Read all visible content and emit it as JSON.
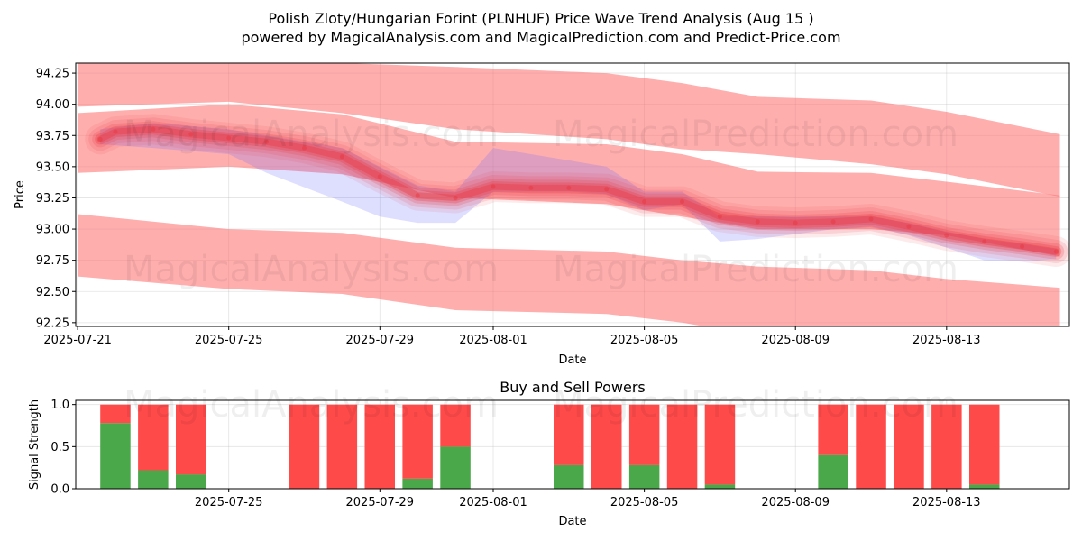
{
  "title_line1": "Polish Zloty/Hungarian Forint (PLNHUF) Price Wave Trend Analysis (Aug 15 )",
  "title_line2": "powered by MagicalAnalysis.com and MagicalPrediction.com and Predict-Price.com",
  "watermarks": [
    "MagicalAnalysis.com",
    "MagicalPrediction.com"
  ],
  "colors": {
    "band": "#ff6b6b",
    "trend": "#e83a44",
    "blue": "#6b6bff",
    "buy": "#4aa84a",
    "sell": "#ff4a4a"
  },
  "chart_data": [
    {
      "type": "line",
      "title": "",
      "xlabel": "Date",
      "ylabel": "Price",
      "x_ticks": [
        "2025-07-21",
        "2025-07-25",
        "2025-07-29",
        "2025-08-01",
        "2025-08-05",
        "2025-08-09",
        "2025-08-13"
      ],
      "y_ticks": [
        "92.25",
        "92.50",
        "92.75",
        "93.00",
        "93.25",
        "93.50",
        "93.75",
        "94.00",
        "94.25"
      ],
      "xlim": [
        "2025-07-20.95",
        "2025-08-16.25"
      ],
      "ylim": [
        92.22,
        94.33
      ],
      "grid": true,
      "upper_band": {
        "x": [
          "2025-07-21",
          "2025-07-25",
          "2025-07-28",
          "2025-07-31",
          "2025-08-04",
          "2025-08-06",
          "2025-08-08",
          "2025-08-11",
          "2025-08-13",
          "2025-08-16"
        ],
        "low": [
          93.98,
          94.02,
          93.93,
          93.8,
          93.72,
          93.64,
          93.6,
          93.52,
          93.44,
          93.26
        ],
        "high": [
          94.35,
          94.35,
          94.33,
          94.3,
          94.25,
          94.17,
          94.06,
          94.03,
          93.94,
          93.76
        ]
      },
      "mid_band": {
        "x": [
          "2025-07-21",
          "2025-07-25",
          "2025-07-28",
          "2025-07-31",
          "2025-08-04",
          "2025-08-06",
          "2025-08-08",
          "2025-08-11",
          "2025-08-13",
          "2025-08-16"
        ],
        "low": [
          93.45,
          93.5,
          93.44,
          93.25,
          93.2,
          93.1,
          93.0,
          93.0,
          92.95,
          92.78
        ],
        "high": [
          93.93,
          94.0,
          93.92,
          93.7,
          93.68,
          93.6,
          93.46,
          93.45,
          93.38,
          93.27
        ]
      },
      "lower_band": {
        "x": [
          "2025-07-21",
          "2025-07-25",
          "2025-07-28",
          "2025-07-31",
          "2025-08-04",
          "2025-08-06",
          "2025-08-08",
          "2025-08-11",
          "2025-08-13",
          "2025-08-16"
        ],
        "low": [
          92.62,
          92.52,
          92.48,
          92.35,
          92.32,
          92.25,
          92.15,
          92.05,
          92.0,
          91.95
        ],
        "high": [
          93.12,
          93.0,
          92.97,
          92.85,
          92.82,
          92.75,
          92.7,
          92.67,
          92.6,
          92.53
        ]
      },
      "trend": {
        "x": [
          "2025-07-21.6",
          "2025-07-22",
          "2025-07-23",
          "2025-07-24",
          "2025-07-25",
          "2025-07-26",
          "2025-07-27",
          "2025-07-28",
          "2025-07-29",
          "2025-07-30",
          "2025-07-31",
          "2025-08-01",
          "2025-08-02",
          "2025-08-03",
          "2025-08-04",
          "2025-08-05",
          "2025-08-06",
          "2025-08-07",
          "2025-08-08",
          "2025-08-09",
          "2025-08-10",
          "2025-08-11",
          "2025-08-12",
          "2025-08-13",
          "2025-08-14",
          "2025-08-15",
          "2025-08-15.9"
        ],
        "y": [
          93.72,
          93.78,
          93.8,
          93.76,
          93.73,
          93.7,
          93.65,
          93.58,
          93.42,
          93.27,
          93.25,
          93.34,
          93.33,
          93.33,
          93.32,
          93.22,
          93.22,
          93.1,
          93.06,
          93.05,
          93.06,
          93.08,
          93.02,
          92.95,
          92.9,
          92.86,
          92.82
        ]
      },
      "blue_band": {
        "x": [
          "2025-07-21.6",
          "2025-07-23",
          "2025-07-25",
          "2025-07-26",
          "2025-07-28",
          "2025-07-29",
          "2025-07-30",
          "2025-07-31",
          "2025-08-01",
          "2025-08-03",
          "2025-08-04",
          "2025-08-05",
          "2025-08-06",
          "2025-08-07",
          "2025-08-08",
          "2025-08-10",
          "2025-08-11",
          "2025-08-12",
          "2025-08-13",
          "2025-08-14",
          "2025-08-15",
          "2025-08-15.9"
        ],
        "low": [
          93.68,
          93.65,
          93.6,
          93.45,
          93.22,
          93.1,
          93.05,
          93.05,
          93.3,
          93.3,
          93.28,
          93.15,
          93.2,
          92.9,
          92.92,
          93.0,
          93.02,
          92.95,
          92.85,
          92.75,
          92.74,
          92.76
        ],
        "high": [
          93.8,
          93.85,
          93.8,
          93.75,
          93.65,
          93.5,
          93.35,
          93.3,
          93.65,
          93.55,
          93.5,
          93.3,
          93.3,
          93.1,
          93.1,
          93.1,
          93.1,
          93.05,
          92.98,
          92.92,
          92.88,
          92.84
        ]
      }
    },
    {
      "type": "bar",
      "title": "Buy and Sell Powers",
      "xlabel": "Date",
      "ylabel": "Signal Strength",
      "x_ticks": [
        "2025-07-25",
        "2025-07-29",
        "2025-08-01",
        "2025-08-05",
        "2025-08-09",
        "2025-08-13"
      ],
      "y_ticks": [
        "0.0",
        "0.5",
        "1.0"
      ],
      "xlim": [
        "2025-07-20.95",
        "2025-08-16.25"
      ],
      "ylim": [
        0,
        1.05
      ],
      "dates": [
        "2025-07-22",
        "2025-07-23",
        "2025-07-24",
        "2025-07-27",
        "2025-07-28",
        "2025-07-29",
        "2025-07-30",
        "2025-07-31",
        "2025-08-03",
        "2025-08-04",
        "2025-08-05",
        "2025-08-06",
        "2025-08-07",
        "2025-08-10",
        "2025-08-11",
        "2025-08-12",
        "2025-08-13",
        "2025-08-14"
      ],
      "series": [
        {
          "values": [
            0.78,
            0.22,
            0.17,
            0,
            0,
            0,
            0.12,
            0.5,
            0.28,
            0,
            0.28,
            0,
            0.05,
            0.4,
            0,
            0,
            0,
            0.05
          ]
        },
        {
          "values": [
            0.22,
            0.78,
            0.83,
            1,
            1,
            1,
            0.88,
            0.5,
            0.72,
            1,
            0.72,
            1,
            0.95,
            0.6,
            1,
            1,
            1,
            0.95
          ]
        }
      ]
    }
  ]
}
